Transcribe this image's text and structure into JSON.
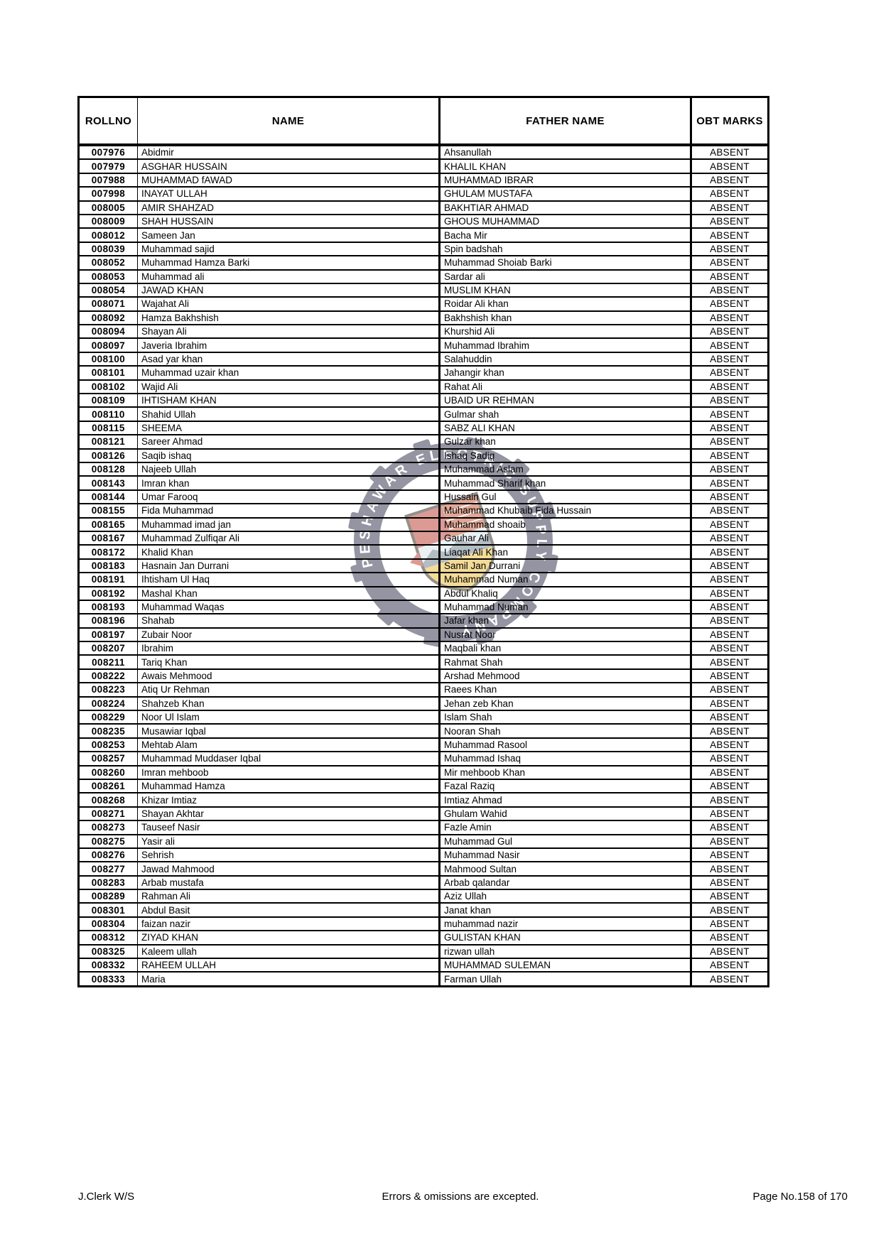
{
  "watermark": {
    "ring_text": "PESHAWAR ELECTRIC SUPPLY COMPANY",
    "colors": {
      "ring": "#2b2b47",
      "shield_red": "#b93a2c",
      "shield_brick": "#c4512f",
      "shield_band": "#d9e2e8",
      "shield_yellow": "#e9b833",
      "shield_outline": "#2e2418"
    }
  },
  "table": {
    "headers": [
      "ROLLNO",
      "NAME",
      "FATHER NAME",
      "OBT MARKS"
    ],
    "rows": [
      {
        "rollno": "007976",
        "name": "Abidmir",
        "father": "Ahsanullah",
        "marks": "ABSENT"
      },
      {
        "rollno": "007979",
        "name": "ASGHAR HUSSAIN",
        "father": "KHALIL KHAN",
        "marks": "ABSENT"
      },
      {
        "rollno": "007988",
        "name": "MUHAMMAD fAWAD",
        "father": "MUHAMMAD IBRAR",
        "marks": "ABSENT"
      },
      {
        "rollno": "007998",
        "name": "INAYAT ULLAH",
        "father": "GHULAM MUSTAFA",
        "marks": "ABSENT"
      },
      {
        "rollno": "008005",
        "name": "AMIR SHAHZAD",
        "father": "BAKHTIAR AHMAD",
        "marks": "ABSENT"
      },
      {
        "rollno": "008009",
        "name": "SHAH HUSSAIN",
        "father": "GHOUS MUHAMMAD",
        "marks": "ABSENT"
      },
      {
        "rollno": "008012",
        "name": "Sameen Jan",
        "father": "Bacha Mir",
        "marks": "ABSENT"
      },
      {
        "rollno": "008039",
        "name": "Muhammad sajid",
        "father": "Spin badshah",
        "marks": "ABSENT"
      },
      {
        "rollno": "008052",
        "name": "Muhammad Hamza Barki",
        "father": "Muhammad Shoiab Barki",
        "marks": "ABSENT"
      },
      {
        "rollno": "008053",
        "name": "Muhammad ali",
        "father": "Sardar ali",
        "marks": "ABSENT"
      },
      {
        "rollno": "008054",
        "name": "JAWAD KHAN",
        "father": "MUSLIM KHAN",
        "marks": "ABSENT"
      },
      {
        "rollno": "008071",
        "name": "Wajahat Ali",
        "father": "Roidar Ali khan",
        "marks": "ABSENT"
      },
      {
        "rollno": "008092",
        "name": "Hamza Bakhshish",
        "father": "Bakhshish khan",
        "marks": "ABSENT"
      },
      {
        "rollno": "008094",
        "name": "Shayan Ali",
        "father": "Khurshid Ali",
        "marks": "ABSENT"
      },
      {
        "rollno": "008097",
        "name": "Javeria Ibrahim",
        "father": "Muhammad Ibrahim",
        "marks": "ABSENT"
      },
      {
        "rollno": "008100",
        "name": "Asad yar khan",
        "father": "Salahuddin",
        "marks": "ABSENT"
      },
      {
        "rollno": "008101",
        "name": "Muhammad uzair khan",
        "father": "Jahangir khan",
        "marks": "ABSENT"
      },
      {
        "rollno": "008102",
        "name": "Wajid Ali",
        "father": "Rahat Ali",
        "marks": "ABSENT"
      },
      {
        "rollno": "008109",
        "name": "IHTISHAM KHAN",
        "father": "UBAID UR REHMAN",
        "marks": "ABSENT"
      },
      {
        "rollno": "008110",
        "name": "Shahid Ullah",
        "father": "Gulmar shah",
        "marks": "ABSENT"
      },
      {
        "rollno": "008115",
        "name": "SHEEMA",
        "father": "SABZ ALI KHAN",
        "marks": "ABSENT"
      },
      {
        "rollno": "008121",
        "name": "Sareer Ahmad",
        "father": "Gulzar khan",
        "marks": "ABSENT"
      },
      {
        "rollno": "008126",
        "name": "Saqib ishaq",
        "father": "Ishaq Sadiq",
        "marks": "ABSENT"
      },
      {
        "rollno": "008128",
        "name": "Najeeb Ullah",
        "father": "Muhammad Aslam",
        "marks": "ABSENT"
      },
      {
        "rollno": "008143",
        "name": "Imran khan",
        "father": "Muhammad Sharif khan",
        "marks": "ABSENT"
      },
      {
        "rollno": "008144",
        "name": "Umar Farooq",
        "father": "Hussain Gul",
        "marks": "ABSENT"
      },
      {
        "rollno": "008155",
        "name": "Fida Muhammad",
        "father": "Muhammad Khubaib Fida Hussain",
        "marks": "ABSENT"
      },
      {
        "rollno": "008165",
        "name": "Muhammad imad jan",
        "father": "Muhammad shoaib",
        "marks": "ABSENT"
      },
      {
        "rollno": "008167",
        "name": "Muhammad Zulfiqar Ali",
        "father": "Gauhar Ali",
        "marks": "ABSENT"
      },
      {
        "rollno": "008172",
        "name": "Khalid Khan",
        "father": "Liaqat Ali Khan",
        "marks": "ABSENT"
      },
      {
        "rollno": "008183",
        "name": "Hasnain Jan Durrani",
        "father": "Samil Jan Durrani",
        "marks": "ABSENT"
      },
      {
        "rollno": "008191",
        "name": "Ihtisham Ul Haq",
        "father": "Muhammad Numan",
        "marks": "ABSENT"
      },
      {
        "rollno": "008192",
        "name": "Mashal Khan",
        "father": "Abdul Khaliq",
        "marks": "ABSENT"
      },
      {
        "rollno": "008193",
        "name": "Muhammad Waqas",
        "father": "Muhammad Numan",
        "marks": "ABSENT"
      },
      {
        "rollno": "008196",
        "name": "Shahab",
        "father": "Jafar khan",
        "marks": "ABSENT"
      },
      {
        "rollno": "008197",
        "name": "Zubair Noor",
        "father": "Nusrat Noor",
        "marks": "ABSENT"
      },
      {
        "rollno": "008207",
        "name": "Ibrahim",
        "father": "Maqbali khan",
        "marks": "ABSENT"
      },
      {
        "rollno": "008211",
        "name": "Tariq Khan",
        "father": "Rahmat Shah",
        "marks": "ABSENT"
      },
      {
        "rollno": "008222",
        "name": "Awais Mehmood",
        "father": "Arshad Mehmood",
        "marks": "ABSENT"
      },
      {
        "rollno": "008223",
        "name": "Atiq Ur Rehman",
        "father": "Raees Khan",
        "marks": "ABSENT"
      },
      {
        "rollno": "008224",
        "name": "Shahzeb Khan",
        "father": "Jehan zeb Khan",
        "marks": "ABSENT"
      },
      {
        "rollno": "008229",
        "name": "Noor Ul Islam",
        "father": "Islam Shah",
        "marks": "ABSENT"
      },
      {
        "rollno": "008235",
        "name": "Musawiar Iqbal",
        "father": "Nooran Shah",
        "marks": "ABSENT"
      },
      {
        "rollno": "008253",
        "name": "Mehtab Alam",
        "father": "Muhammad Rasool",
        "marks": "ABSENT"
      },
      {
        "rollno": "008257",
        "name": "Muhammad Muddaser Iqbal",
        "father": "Muhammad Ishaq",
        "marks": "ABSENT"
      },
      {
        "rollno": "008260",
        "name": "Imran mehboob",
        "father": "Mir mehboob Khan",
        "marks": "ABSENT"
      },
      {
        "rollno": "008261",
        "name": "Muhammad Hamza",
        "father": "Fazal Raziq",
        "marks": "ABSENT"
      },
      {
        "rollno": "008268",
        "name": "Khizar Imtiaz",
        "father": "Imtiaz Ahmad",
        "marks": "ABSENT"
      },
      {
        "rollno": "008271",
        "name": "Shayan Akhtar",
        "father": "Ghulam Wahid",
        "marks": "ABSENT"
      },
      {
        "rollno": "008273",
        "name": "Tauseef Nasir",
        "father": "Fazle Amin",
        "marks": "ABSENT"
      },
      {
        "rollno": "008275",
        "name": "Yasir ali",
        "father": "Muhammad Gul",
        "marks": "ABSENT"
      },
      {
        "rollno": "008276",
        "name": "Sehrish",
        "father": "Muhammad Nasir",
        "marks": "ABSENT"
      },
      {
        "rollno": "008277",
        "name": "Jawad Mahmood",
        "father": "Mahmood Sultan",
        "marks": "ABSENT"
      },
      {
        "rollno": "008283",
        "name": "Arbab mustafa",
        "father": "Arbab qalandar",
        "marks": "ABSENT"
      },
      {
        "rollno": "008289",
        "name": "Rahman Ali",
        "father": "Aziz Ullah",
        "marks": "ABSENT"
      },
      {
        "rollno": "008301",
        "name": "Abdul Basit",
        "father": "Janat khan",
        "marks": "ABSENT"
      },
      {
        "rollno": "008304",
        "name": "faizan nazir",
        "father": "muhammad nazir",
        "marks": "ABSENT"
      },
      {
        "rollno": "008312",
        "name": "ZIYAD KHAN",
        "father": "GULISTAN KHAN",
        "marks": "ABSENT"
      },
      {
        "rollno": "008325",
        "name": "Kaleem ullah",
        "father": "rizwan ullah",
        "marks": "ABSENT"
      },
      {
        "rollno": "008332",
        "name": "RAHEEM ULLAH",
        "father": "MUHAMMAD SULEMAN",
        "marks": "ABSENT"
      },
      {
        "rollno": "008333",
        "name": "Maria",
        "father": "Farman Ullah",
        "marks": "ABSENT"
      }
    ]
  },
  "footer": {
    "left": "J.Clerk W/S",
    "center": "Errors & omissions are excepted.",
    "right": "Page No.158 of 170"
  }
}
